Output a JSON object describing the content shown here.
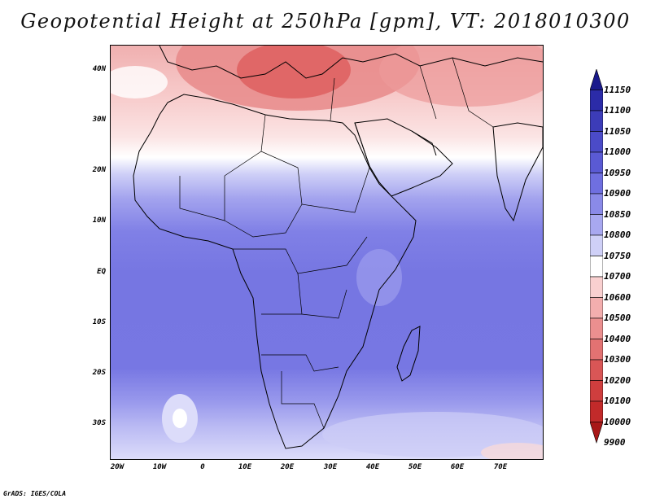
{
  "title": "Geopotential Height at 250hPa [gpm], VT: 2018010300",
  "credit": "GrADS: IGES/COLA",
  "lat_labels": [
    "40N",
    "30N",
    "20N",
    "10N",
    "EQ",
    "10S",
    "20S",
    "30S"
  ],
  "lon_labels": [
    "20W",
    "10W",
    "0",
    "10E",
    "20E",
    "30E",
    "40E",
    "50E",
    "60E",
    "70E"
  ],
  "colorbar": {
    "levels": [
      "11150",
      "11100",
      "11050",
      "11000",
      "10950",
      "10900",
      "10850",
      "10800",
      "10750",
      "10700",
      "10600",
      "10500",
      "10400",
      "10300",
      "10200",
      "10100",
      "10000",
      "9900"
    ],
    "colors": [
      "#1a1a8c",
      "#2b2ba8",
      "#3c3cb8",
      "#4b4bc8",
      "#5a5ad4",
      "#6f6fe0",
      "#8a8ae8",
      "#a8a8f0",
      "#cfd0f7",
      "#ffffff",
      "#f9d0d0",
      "#f3aeae",
      "#eb8f8f",
      "#e27272",
      "#d95656",
      "#cf3e3e",
      "#c22a2a",
      "#a81818"
    ]
  }
}
